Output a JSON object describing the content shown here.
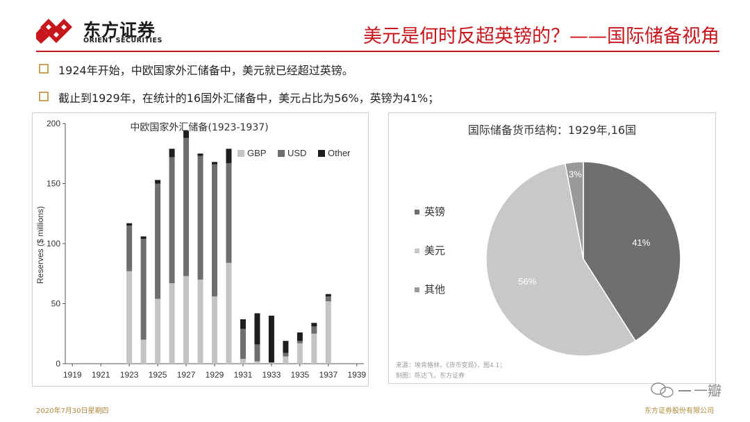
{
  "logo": {
    "cn": "东方证券",
    "en": "ORIENT SECURITIES"
  },
  "header": {
    "title": "美元是何时反超英镑的？——国际储备视角"
  },
  "bullets": [
    "1924年开始，中欧国家外汇储备中，美元就已经超过英镑。",
    "截止到1929年，在统计的16国外汇储备中，美元占比为56%，英镑为41%；"
  ],
  "colors": {
    "accent": "#c8161d",
    "gbp": "#c4c4c4",
    "usd": "#6e6e6e",
    "other": "#1e1e1e",
    "pie_gbp": "#6f6f6f",
    "pie_usd": "#c8c8c8",
    "pie_other": "#999999"
  },
  "chart_data": [
    {
      "type": "bar",
      "stacked": true,
      "title": "中欧国家外汇储备(1923-1937)",
      "ylabel": "Reserves ($ millions)",
      "xlabel": "",
      "ylim": [
        0,
        200
      ],
      "yticks": [
        0,
        50,
        100,
        150,
        200
      ],
      "xlim": [
        1918.5,
        1939.5
      ],
      "xticks": [
        1919,
        1921,
        1923,
        1925,
        1927,
        1929,
        1931,
        1933,
        1935,
        1937,
        1939
      ],
      "categories": [
        1923,
        1924,
        1925,
        1926,
        1927,
        1928,
        1929,
        1930,
        1931,
        1932,
        1933,
        1934,
        1935,
        1936,
        1937
      ],
      "legend": [
        "GBP",
        "USD",
        "Other"
      ],
      "series": [
        {
          "name": "GBP",
          "values": [
            77,
            20,
            54,
            67,
            73,
            70,
            56,
            84,
            4,
            2,
            1,
            6,
            17,
            25,
            52
          ]
        },
        {
          "name": "USD",
          "values": [
            38,
            84,
            96,
            105,
            115,
            103,
            110,
            83,
            25,
            14,
            0,
            3,
            2,
            6,
            4
          ]
        },
        {
          "name": "Other",
          "values": [
            2,
            2,
            3,
            7,
            6,
            2,
            2,
            12,
            8,
            26,
            39,
            10,
            7,
            3,
            2
          ]
        }
      ]
    },
    {
      "type": "pie",
      "title": "国际储备货币结构：1929年,16国",
      "legend": [
        "英镑",
        "美元",
        "其他"
      ],
      "slices": [
        {
          "name": "英镑",
          "value": 41,
          "label": "41%"
        },
        {
          "name": "美元",
          "value": 56,
          "label": "56%"
        },
        {
          "name": "其他",
          "value": 3,
          "label": "3%"
        }
      ],
      "source_lines": [
        "来源：埃肯格林，《货币变局》，图4.1；",
        "制图：陈达飞，东方证券"
      ]
    }
  ],
  "footer": {
    "date": "2020年7月30日星期四",
    "company": "东方证券股份有限公司"
  },
  "watermark": {
    "text": "一瓣"
  }
}
